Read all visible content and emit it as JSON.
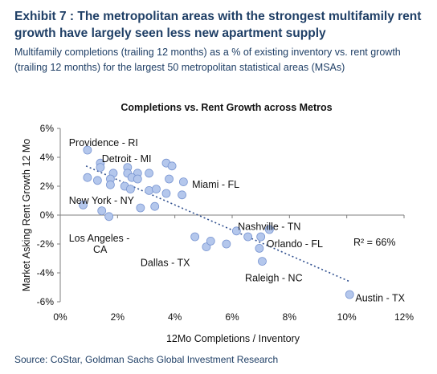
{
  "header": {
    "title": "Exhibit 7 : The metropolitan areas with the strongest multifamily rent growth have largely seen less new apartment supply",
    "subtitle": "Multifamily completions (trailing 12 months) as a % of existing inventory vs. rent growth (trailing 12 months) for the largest 50 metropolitan statistical areas (MSAs)"
  },
  "footer": {
    "source": "Source: CoStar, Goldman Sachs Global Investment Research"
  },
  "colors": {
    "marker_fill": "#b4c7ec",
    "marker_stroke": "#7a96d2",
    "trendline": "#2f4f8f",
    "title_text": "#1f3f66"
  },
  "chart_data": {
    "type": "scatter",
    "title": "Completions vs. Rent Growth across Metros",
    "xlabel": "12Mo Completions / Inventory",
    "ylabel": "Market Asking Rent Growth 12 Mo",
    "xlim": [
      0,
      12
    ],
    "ylim": [
      -6,
      6
    ],
    "x_ticks": [
      0,
      2,
      4,
      6,
      8,
      10,
      12
    ],
    "x_tick_labels": [
      "0%",
      "2%",
      "4%",
      "6%",
      "8%",
      "10%",
      "12%"
    ],
    "y_ticks": [
      6,
      4,
      2,
      0,
      -2,
      -4,
      -6
    ],
    "y_tick_labels": [
      "6%",
      "4%",
      "2%",
      "0%",
      "-2%",
      "-4%",
      "-6%"
    ],
    "grid": false,
    "r_squared_label": "R² = 66%",
    "trendline": {
      "x": [
        0.9,
        10.1
      ],
      "y": [
        3.4,
        -4.6
      ]
    },
    "points": [
      {
        "x": 0.95,
        "y": 4.5
      },
      {
        "x": 1.4,
        "y": 3.6
      },
      {
        "x": 1.4,
        "y": 3.3
      },
      {
        "x": 0.95,
        "y": 2.6
      },
      {
        "x": 1.3,
        "y": 2.4
      },
      {
        "x": 1.85,
        "y": 2.9
      },
      {
        "x": 1.75,
        "y": 2.5
      },
      {
        "x": 1.75,
        "y": 2.1
      },
      {
        "x": 2.35,
        "y": 3.3
      },
      {
        "x": 2.35,
        "y": 2.9
      },
      {
        "x": 2.7,
        "y": 2.9
      },
      {
        "x": 2.5,
        "y": 2.6
      },
      {
        "x": 2.7,
        "y": 2.5
      },
      {
        "x": 2.25,
        "y": 2.0
      },
      {
        "x": 2.45,
        "y": 1.8
      },
      {
        "x": 3.1,
        "y": 2.9
      },
      {
        "x": 3.1,
        "y": 1.7
      },
      {
        "x": 3.35,
        "y": 1.8
      },
      {
        "x": 3.7,
        "y": 3.6
      },
      {
        "x": 3.9,
        "y": 3.4
      },
      {
        "x": 3.8,
        "y": 2.5
      },
      {
        "x": 4.3,
        "y": 2.3
      },
      {
        "x": 3.7,
        "y": 1.5
      },
      {
        "x": 4.25,
        "y": 1.4
      },
      {
        "x": 3.3,
        "y": 0.6
      },
      {
        "x": 2.8,
        "y": 0.5
      },
      {
        "x": 0.8,
        "y": 0.7
      },
      {
        "x": 1.45,
        "y": 0.3
      },
      {
        "x": 1.7,
        "y": -0.1
      },
      {
        "x": 4.7,
        "y": -1.5
      },
      {
        "x": 5.1,
        "y": -2.2
      },
      {
        "x": 5.25,
        "y": -1.8
      },
      {
        "x": 5.8,
        "y": -2.0
      },
      {
        "x": 6.15,
        "y": -1.1
      },
      {
        "x": 6.55,
        "y": -1.5
      },
      {
        "x": 7.0,
        "y": -1.5
      },
      {
        "x": 6.95,
        "y": -2.3
      },
      {
        "x": 7.3,
        "y": -1.0
      },
      {
        "x": 7.05,
        "y": -3.2
      },
      {
        "x": 10.1,
        "y": -5.5
      }
    ],
    "annotations": [
      {
        "text": "Providence - RI",
        "x": 0.3,
        "y": 5.0
      },
      {
        "text": "Detroit - MI",
        "x": 1.45,
        "y": 3.9
      },
      {
        "text": "Miami - FL",
        "x": 4.6,
        "y": 2.1
      },
      {
        "text": "New York - NY",
        "x": 0.3,
        "y": 1.0
      },
      {
        "text": "Los Angeles -",
        "x": 0.3,
        "y": -1.6
      },
      {
        "text": "CA",
        "x": 1.15,
        "y": -2.4
      },
      {
        "text": "Nashville - TN",
        "x": 6.2,
        "y": -0.8
      },
      {
        "text": "Orlando - FL",
        "x": 7.2,
        "y": -2.0
      },
      {
        "text": "Dallas - TX",
        "x": 2.8,
        "y": -3.3
      },
      {
        "text": "Raleigh - NC",
        "x": 6.45,
        "y": -4.35
      },
      {
        "text": "Austin - TX",
        "x": 10.3,
        "y": -5.75
      }
    ]
  }
}
